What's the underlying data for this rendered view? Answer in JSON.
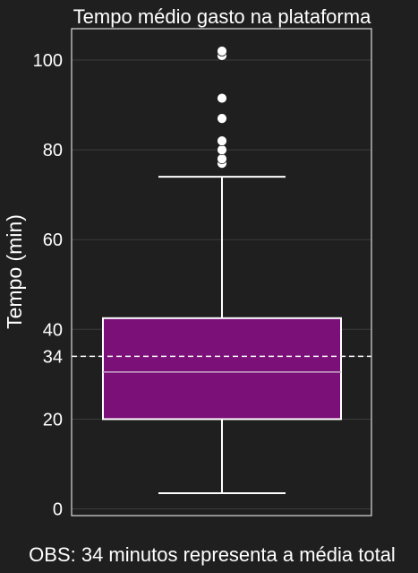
{
  "chart_data": {
    "type": "box",
    "title": "Tempo médio gasto na plataforma",
    "ylabel": "Tempo (min)",
    "xlabel": "",
    "ylim": [
      -1.5,
      107
    ],
    "yticks": [
      0,
      20,
      34,
      40,
      60,
      80,
      100
    ],
    "grid": true,
    "box": {
      "whisker_low": 3.5,
      "q1": 20,
      "median": 30.5,
      "q3": 42.5,
      "whisker_high": 74,
      "color": "#7b1079",
      "outliers": [
        77,
        78,
        80,
        82,
        87,
        91.5,
        101,
        102
      ]
    },
    "reference_line": {
      "value": 34,
      "style": "dashed"
    },
    "note": "OBS: 34 minutos representa a média total"
  },
  "colors": {
    "background": "#1f1f1f",
    "frame": "#dcdcdc",
    "grid": "#3c3c3c",
    "foreground": "#ffffff",
    "box_fill": "#7b1079",
    "median_line": "#c9a9c9"
  }
}
